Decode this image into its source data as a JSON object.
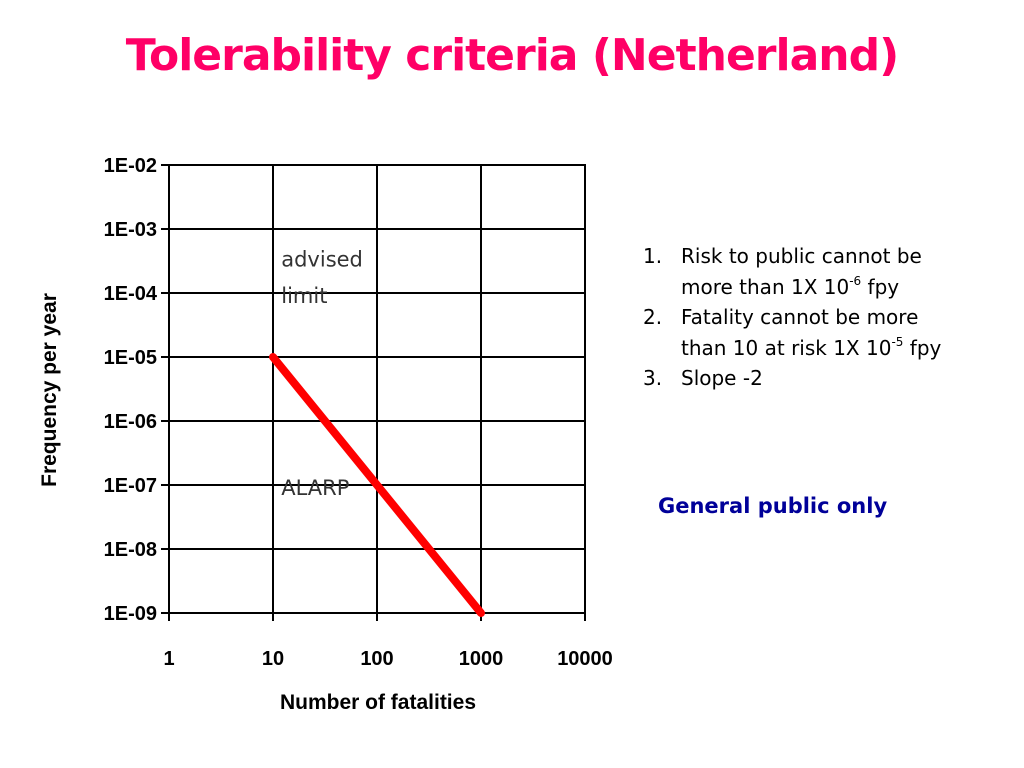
{
  "slide": {
    "title": "Tolerability criteria (Netherland)",
    "title_color": "#ff0066",
    "notes": [
      {
        "num": "1.",
        "line1": "Risk to public cannot be",
        "line2_pre": "more than 1X 10",
        "sup": "-6",
        "line2_post": " fpy"
      },
      {
        "num": "2.",
        "line1": "Fatality cannot be more",
        "line2_pre": "than 10 at risk 1X 10",
        "sup": "-5",
        "line2_post": " fpy"
      },
      {
        "num": "3.",
        "line1": "Slope -2",
        "line2_pre": "",
        "sup": "",
        "line2_post": ""
      }
    ],
    "general_note": "General public only",
    "general_note_color": "#000099"
  },
  "chart_data": {
    "type": "line",
    "xlabel": "Number of fatalities",
    "ylabel": "Frequency per year",
    "x_scale": "log",
    "y_scale": "log",
    "xlim": [
      1,
      10000
    ],
    "ylim": [
      1e-09,
      0.01
    ],
    "x_ticks": [
      {
        "value": 1,
        "label": "1"
      },
      {
        "value": 10,
        "label": "10"
      },
      {
        "value": 100,
        "label": "100"
      },
      {
        "value": 1000,
        "label": "1000"
      },
      {
        "value": 10000,
        "label": "10000"
      }
    ],
    "y_ticks": [
      {
        "value": 0.01,
        "label": "1E-02"
      },
      {
        "value": 0.001,
        "label": "1E-03"
      },
      {
        "value": 0.0001,
        "label": "1E-04"
      },
      {
        "value": 1e-05,
        "label": "1E-05"
      },
      {
        "value": 1e-06,
        "label": "1E-06"
      },
      {
        "value": 1e-07,
        "label": "1E-07"
      },
      {
        "value": 1e-08,
        "label": "1E-08"
      },
      {
        "value": 1e-09,
        "label": "1E-09"
      }
    ],
    "grid": true,
    "series": [
      {
        "color": "#ff0000",
        "x": [
          10,
          100,
          1000
        ],
        "y": [
          1e-05,
          1e-07,
          1e-09
        ]
      }
    ],
    "annotations": [
      {
        "text": "advised",
        "x": 12,
        "y": 0.00026
      },
      {
        "text": "limit",
        "x": 12,
        "y": 7e-05
      },
      {
        "text": "ALARP",
        "x": 12,
        "y": 7e-08
      }
    ]
  }
}
